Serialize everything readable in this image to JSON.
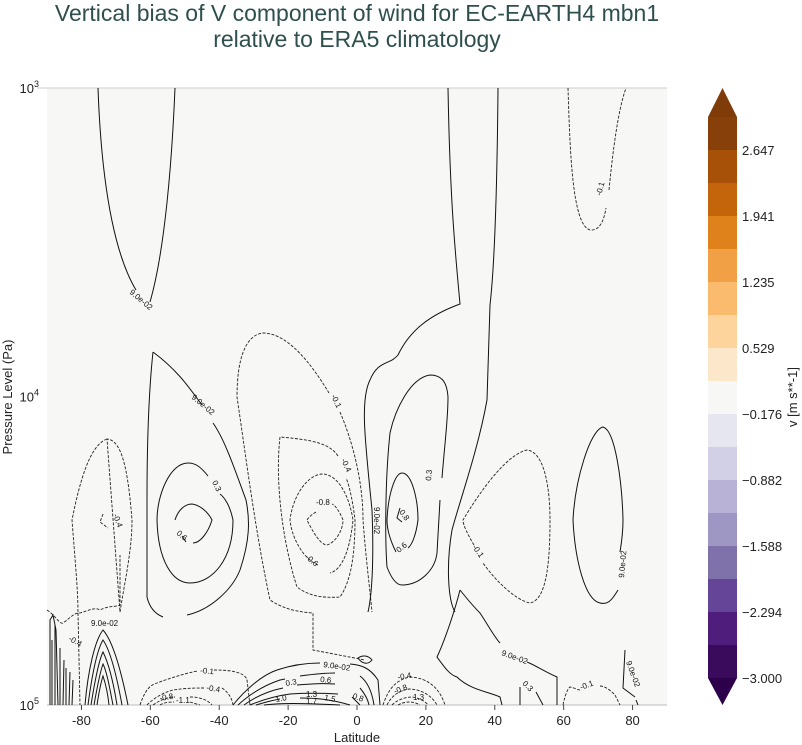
{
  "title": {
    "line1": "Vertical bias of V component of wind for EC-EARTH4 mbn1",
    "line2": "relative to ERA5 climatology"
  },
  "chart_data": {
    "type": "contour",
    "xlabel": "Latitude",
    "ylabel": "Pressure Level (Pa)",
    "xlim": [
      -90,
      90
    ],
    "ylim": [
      100000,
      1000
    ],
    "yscale": "log",
    "y_inverted": true,
    "xticks": [
      -80,
      -60,
      -40,
      -20,
      0,
      20,
      40,
      60,
      80
    ],
    "yticks": [
      {
        "value": 1000,
        "base": "10",
        "exp": "3"
      },
      {
        "value": 10000,
        "base": "10",
        "exp": "4"
      },
      {
        "value": 100000,
        "base": "10",
        "exp": "5"
      }
    ],
    "background_color": "#f7f7f5",
    "negative_contours_dashed": true,
    "colorbar": {
      "label": "v [m s**-1]",
      "min": -3.0,
      "max": 3.0,
      "extend": "both",
      "ticks": [
        "2.647",
        "1.941",
        "1.235",
        "0.529",
        "−0.176",
        "−0.882",
        "−1.588",
        "−2.294",
        "−3.000"
      ],
      "tick_values": [
        2.647,
        1.941,
        1.235,
        0.529,
        -0.176,
        -0.882,
        -1.588,
        -2.294,
        -3.0
      ],
      "colors_top_to_bottom": [
        "#87400a",
        "#a65107",
        "#c4650c",
        "#e0821b",
        "#f2a046",
        "#fbbb6e",
        "#fdd49c",
        "#fce7cb",
        "#f7f7f6",
        "#e6e6f1",
        "#d1d0e6",
        "#b8b3d6",
        "#9e96c3",
        "#7f72ab",
        "#644597",
        "#4f1e7c",
        "#3a0a5c"
      ],
      "extend_top_color": "#7f3b08",
      "extend_bottom_color": "#2d004b"
    },
    "contour_labels": [
      "9.0e-02",
      "-0.1",
      "9.0e-02",
      "0.3",
      "0.6",
      "-0.4",
      "-0.1",
      "-0.4",
      "-0.6",
      "-0.8",
      "0.3",
      "0.6",
      "0.8",
      "9.0e-02",
      "-0.1",
      "9.0e-02",
      "9.0e-02",
      "-0.4",
      "-0.1",
      "-0.4",
      "-0.8",
      "-1.1",
      "0.3",
      "0.6",
      "0.8",
      "1.0",
      "1.3",
      "1.5",
      "1.7",
      "9.0e-02",
      "-0.4",
      "-0.8",
      "1.3",
      "9.0e-02",
      "0.3",
      "-0.1",
      "9.0e-02"
    ]
  }
}
